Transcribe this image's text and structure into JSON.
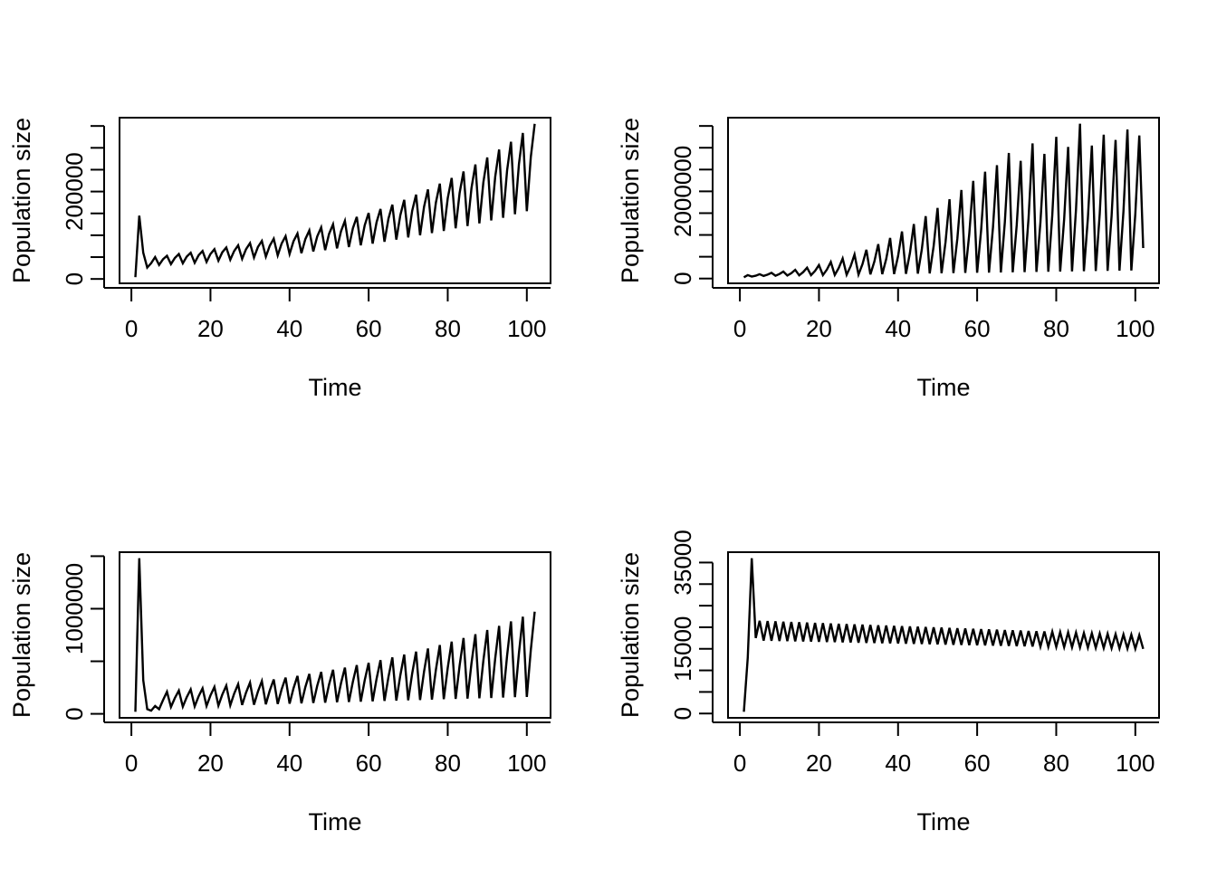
{
  "figure": {
    "description": "Four line plots of population size over time",
    "background": "#ffffff",
    "line_color": "#000000"
  },
  "chart_data": [
    {
      "position": "top-left",
      "type": "line",
      "title": "",
      "xlabel": "Time",
      "ylabel": "Population size",
      "x_ticks": [
        0,
        20,
        40,
        60,
        80,
        100
      ],
      "y_ticks": [
        0,
        50000,
        100000,
        150000,
        200000,
        250000,
        300000,
        350000
      ],
      "y_tick_labels": [
        {
          "value": 0,
          "label": "0"
        },
        {
          "value": 200000,
          "label": "200000"
        }
      ],
      "xlim": [
        -3,
        106
      ],
      "ylim": [
        -10000,
        369000
      ],
      "x_start": 1,
      "x_step": 1,
      "grid": false,
      "legend": "none",
      "color": "#000000",
      "values": [
        4000,
        145000,
        60000,
        26000,
        36000,
        50000,
        32000,
        45000,
        53000,
        34000,
        48000,
        57000,
        36000,
        51000,
        60000,
        37000,
        54000,
        64000,
        39000,
        57000,
        68000,
        42000,
        61000,
        72000,
        44000,
        64000,
        77000,
        46000,
        68000,
        82000,
        49000,
        73000,
        87000,
        51000,
        76000,
        92000,
        54000,
        81000,
        98000,
        57000,
        86000,
        104000,
        59000,
        91000,
        111000,
        63000,
        97000,
        118000,
        66000,
        103000,
        125000,
        70000,
        109000,
        133000,
        73000,
        116000,
        142000,
        77000,
        123000,
        151000,
        81000,
        130000,
        160000,
        85000,
        138000,
        170000,
        90000,
        146000,
        181000,
        95000,
        156000,
        193000,
        100000,
        165000,
        205000,
        105000,
        175000,
        218000,
        110000,
        185000,
        231000,
        116000,
        197000,
        246000,
        121000,
        208000,
        262000,
        127000,
        221000,
        278000,
        134000,
        234000,
        296000,
        140000,
        248000,
        314000,
        148000,
        263000,
        334000,
        155000,
        279000,
        355000
      ]
    },
    {
      "position": "top-right",
      "type": "line",
      "title": "",
      "xlabel": "Time",
      "ylabel": "Population size",
      "x_ticks": [
        0,
        20,
        40,
        60,
        80,
        100
      ],
      "y_ticks": [
        0,
        500000,
        1000000,
        1500000,
        2000000,
        2500000,
        3000000,
        3500000
      ],
      "y_tick_labels": [
        {
          "value": 0,
          "label": "0"
        },
        {
          "value": 2000000,
          "label": "2000000"
        }
      ],
      "xlim": [
        -3,
        106
      ],
      "ylim": [
        -110000,
        3690000
      ],
      "x_start": 1,
      "x_step": 1,
      "grid": false,
      "legend": "none",
      "color": "#000000",
      "values": [
        30000,
        80000,
        45000,
        65000,
        100000,
        60000,
        89000,
        130000,
        64000,
        104000,
        160000,
        68000,
        123000,
        200000,
        72000,
        147000,
        250000,
        76000,
        174000,
        310000,
        80000,
        206000,
        380000,
        84000,
        242000,
        460000,
        88000,
        282000,
        550000,
        92000,
        331000,
        660000,
        96000,
        388000,
        790000,
        100000,
        449000,
        930000,
        104000,
        514000,
        1080000,
        108000,
        588000,
        1250000,
        112000,
        666000,
        1430000,
        116000,
        748000,
        1620000,
        120000,
        834000,
        1820000,
        124000,
        925000,
        2030000,
        128000,
        1015000,
        2240000,
        132000,
        1106000,
        2450000,
        136000,
        1171000,
        2600000,
        140000,
        1291000,
        2880000,
        144000,
        1218000,
        2700000,
        148000,
        1388000,
        3100000,
        152000,
        1289000,
        2860000,
        156000,
        1455000,
        3250000,
        160000,
        1361000,
        3020000,
        164000,
        1586000,
        3550000,
        168000,
        1378000,
        3050000,
        172000,
        1486000,
        3300000,
        176000,
        1438000,
        3180000,
        180000,
        1541000,
        3420000,
        184000,
        1484000,
        3280000,
        700000
      ]
    },
    {
      "position": "bottom-left",
      "type": "line",
      "title": "",
      "xlabel": "Time",
      "ylabel": "Population size",
      "x_ticks": [
        0,
        20,
        40,
        60,
        80,
        100
      ],
      "y_ticks": [
        0,
        500000,
        1000000,
        1500000
      ],
      "y_tick_labels": [
        {
          "value": 0,
          "label": "0"
        },
        {
          "value": 1000000,
          "label": "1000000"
        }
      ],
      "xlim": [
        -3,
        106
      ],
      "ylim": [
        -38000,
        1538000
      ],
      "x_start": 1,
      "x_step": 1,
      "grid": false,
      "legend": "none",
      "color": "#000000",
      "values": [
        20000,
        1480000,
        320000,
        45000,
        30000,
        75000,
        45000,
        130000,
        210000,
        65000,
        151000,
        221000,
        68000,
        158000,
        232000,
        71000,
        166000,
        243000,
        75000,
        175000,
        256000,
        78000,
        183000,
        269000,
        81000,
        192000,
        282000,
        84000,
        201000,
        297000,
        87000,
        211000,
        312000,
        91000,
        221000,
        327000,
        94000,
        232000,
        344000,
        97000,
        242000,
        361000,
        100000,
        254000,
        380000,
        103000,
        266000,
        399000,
        107000,
        279000,
        419000,
        110000,
        292000,
        440000,
        113000,
        306000,
        463000,
        116000,
        320000,
        486000,
        119000,
        335000,
        511000,
        123000,
        351000,
        537000,
        126000,
        367000,
        564000,
        129000,
        384000,
        592000,
        132000,
        402000,
        622000,
        135000,
        420000,
        654000,
        139000,
        440000,
        687000,
        142000,
        461000,
        722000,
        145000,
        482000,
        758000,
        148000,
        505000,
        797000,
        151000,
        528000,
        837000,
        155000,
        553000,
        879000,
        158000,
        579000,
        924000,
        161000,
        607000,
        971000
      ]
    },
    {
      "position": "bottom-right",
      "type": "line",
      "title": "",
      "xlabel": "Time",
      "ylabel": "Population size",
      "x_ticks": [
        0,
        20,
        40,
        60,
        80,
        100
      ],
      "y_ticks": [
        0,
        5000,
        10000,
        15000,
        20000,
        25000,
        30000,
        35000
      ],
      "y_tick_labels": [
        {
          "value": 0,
          "label": "0"
        },
        {
          "value": 15000,
          "label": "15000"
        },
        {
          "value": 35000,
          "label": "35000"
        }
      ],
      "xlim": [
        -3,
        106
      ],
      "ylim": [
        -1000,
        37400
      ],
      "x_start": 1,
      "x_step": 1,
      "grid": false,
      "legend": "none",
      "color": "#000000",
      "values": [
        400,
        13000,
        36000,
        17500,
        21500,
        16900,
        21431,
        16860,
        21362,
        16820,
        21293,
        16780,
        21224,
        16740,
        21155,
        16700,
        21086,
        16660,
        21017,
        16620,
        20948,
        16580,
        20879,
        16540,
        20810,
        16500,
        20741,
        16460,
        20672,
        16420,
        20603,
        16380,
        20534,
        16340,
        20465,
        16300,
        20396,
        16260,
        20327,
        16220,
        20258,
        16180,
        20189,
        16140,
        20120,
        16100,
        20051,
        16060,
        19982,
        16020,
        19913,
        15980,
        19844,
        15940,
        19775,
        15900,
        19706,
        15860,
        19637,
        15820,
        19568,
        15780,
        19499,
        15740,
        19430,
        15700,
        19361,
        15660,
        19292,
        15620,
        19223,
        15580,
        19154,
        15540,
        19085,
        15500,
        19016,
        15460,
        18947,
        15420,
        18878,
        15380,
        18809,
        15340,
        18740,
        15300,
        18671,
        15260,
        18602,
        15220,
        18533,
        15180,
        18464,
        15140,
        18395,
        15100,
        18326,
        15060,
        18257,
        15020,
        18188,
        14980
      ]
    }
  ]
}
